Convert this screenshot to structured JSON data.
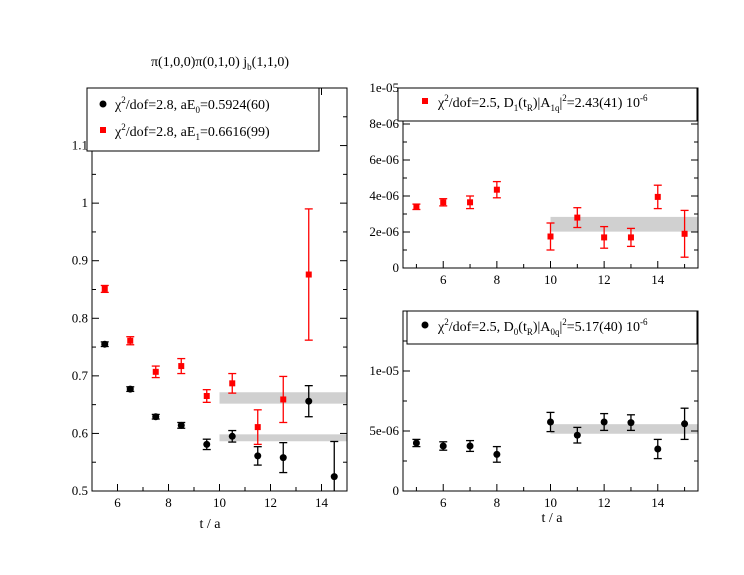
{
  "chart_data": [
    {
      "type": "scatter",
      "title_main": "π(1,0,0)π(0,1,0)  j",
      "title_sub": "b",
      "title_tail": "(1,1,0)",
      "xlabel": "t / a",
      "xlim": [
        5,
        15
      ],
      "ylim": [
        0.5,
        1.2
      ],
      "xticks": [
        6,
        8,
        10,
        12,
        14
      ],
      "yticks": [
        0.5,
        0.6,
        0.7,
        0.8,
        0.9,
        1,
        1.1
      ],
      "ytick_labels": [
        "0.5",
        "0.6",
        "0.7",
        "0.8",
        "0.9",
        "1",
        "1.1"
      ],
      "series": [
        {
          "name": "ground",
          "color": "#000000",
          "marker": "circle",
          "legend": {
            "pre": "χ",
            "sup": "2",
            "mid": "/dof=2.8,  aE",
            "sub": "0",
            "post": "=0.5924(60)"
          },
          "points": [
            {
              "x": 5.5,
              "y": 0.755,
              "err": 0.004
            },
            {
              "x": 6.5,
              "y": 0.677,
              "err": 0.004
            },
            {
              "x": 7.5,
              "y": 0.629,
              "err": 0.004
            },
            {
              "x": 8.5,
              "y": 0.614,
              "err": 0.005
            },
            {
              "x": 9.5,
              "y": 0.581,
              "err": 0.009
            },
            {
              "x": 10.5,
              "y": 0.595,
              "err": 0.01
            },
            {
              "x": 11.5,
              "y": 0.561,
              "err": 0.016
            },
            {
              "x": 12.5,
              "y": 0.558,
              "err": 0.026
            },
            {
              "x": 13.5,
              "y": 0.656,
              "err": 0.027
            },
            {
              "x": 14.5,
              "y": 0.525,
              "err": 0.061
            }
          ],
          "band": {
            "x0": 10,
            "x1": 15,
            "y": 0.5924,
            "err": 0.006
          }
        },
        {
          "name": "excited",
          "color": "#ff0000",
          "marker": "square",
          "legend": {
            "pre": "χ",
            "sup": "2",
            "mid": "/dof=2.8,  aE",
            "sub": "1",
            "post": "=0.6616(99)"
          },
          "points": [
            {
              "x": 5.5,
              "y": 0.851,
              "err": 0.006
            },
            {
              "x": 6.5,
              "y": 0.761,
              "err": 0.007
            },
            {
              "x": 7.5,
              "y": 0.707,
              "err": 0.01
            },
            {
              "x": 8.5,
              "y": 0.717,
              "err": 0.013
            },
            {
              "x": 9.5,
              "y": 0.665,
              "err": 0.011
            },
            {
              "x": 10.5,
              "y": 0.687,
              "err": 0.017
            },
            {
              "x": 11.5,
              "y": 0.611,
              "err": 0.03
            },
            {
              "x": 12.5,
              "y": 0.659,
              "err": 0.04
            },
            {
              "x": 13.5,
              "y": 0.876,
              "err": 0.114
            }
          ],
          "band": {
            "x0": 10,
            "x1": 15,
            "y": 0.6616,
            "err": 0.0099
          }
        }
      ]
    },
    {
      "type": "scatter",
      "xlabel": "",
      "xlim": [
        4.5,
        15.5
      ],
      "ylim": [
        0,
        1e-05
      ],
      "xticks": [
        6,
        8,
        10,
        12,
        14
      ],
      "yticks": [
        0,
        2e-06,
        4e-06,
        6e-06,
        8e-06,
        1e-05
      ],
      "ytick_labels": [
        "0",
        "2e-06",
        "4e-06",
        "6e-06",
        "8e-06",
        "1e-05"
      ],
      "series": [
        {
          "name": "D1",
          "color": "#ff0000",
          "marker": "square",
          "legend": {
            "pre": "χ",
            "sup": "2",
            "mid": "/dof=2.5, D",
            "sub": "1",
            "post1": "(t",
            "sub2": "R",
            "post2": ")|A",
            "sub3": "1q",
            "post3": "|",
            "sup2": "2",
            "post4": "=2.43(41) 10",
            "sup3": "-6"
          },
          "points": [
            {
              "x": 5,
              "y": 3.4e-06,
              "err": 1.5e-07
            },
            {
              "x": 6,
              "y": 3.65e-06,
              "err": 2e-07
            },
            {
              "x": 7,
              "y": 3.65e-06,
              "err": 3.5e-07
            },
            {
              "x": 8,
              "y": 4.35e-06,
              "err": 4.5e-07
            },
            {
              "x": 10,
              "y": 1.75e-06,
              "err": 7.5e-07
            },
            {
              "x": 11,
              "y": 2.8e-06,
              "err": 5.5e-07
            },
            {
              "x": 12,
              "y": 1.7e-06,
              "err": 6e-07
            },
            {
              "x": 13,
              "y": 1.7e-06,
              "err": 5e-07
            },
            {
              "x": 14,
              "y": 3.95e-06,
              "err": 6.5e-07
            },
            {
              "x": 15,
              "y": 1.9e-06,
              "err": 1.3e-06
            }
          ],
          "band": {
            "x0": 10,
            "x1": 15.5,
            "y": 2.43e-06,
            "err": 4.1e-07
          }
        }
      ]
    },
    {
      "type": "scatter",
      "xlabel": "t / a",
      "xlim": [
        4.5,
        15.5
      ],
      "ylim": [
        0,
        1.5e-05
      ],
      "xticks": [
        6,
        8,
        10,
        12,
        14
      ],
      "yticks": [
        0,
        5e-06,
        1e-05
      ],
      "ytick_labels": [
        "0",
        "5e-06",
        "1e-05"
      ],
      "series": [
        {
          "name": "D0",
          "color": "#000000",
          "marker": "circle",
          "legend": {
            "pre": "χ",
            "sup": "2",
            "mid": "/dof=2.5, D",
            "sub": "0",
            "post1": "(t",
            "sub2": "R",
            "post2": ")|A",
            "sub3": "0q",
            "post3": "|",
            "sup2": "2",
            "post4": "=5.17(40) 10",
            "sup3": "-6"
          },
          "points": [
            {
              "x": 5,
              "y": 4e-06,
              "err": 3e-07
            },
            {
              "x": 6,
              "y": 3.75e-06,
              "err": 3.5e-07
            },
            {
              "x": 7,
              "y": 3.75e-06,
              "err": 4.5e-07
            },
            {
              "x": 8,
              "y": 3.05e-06,
              "err": 6.5e-07
            },
            {
              "x": 10,
              "y": 5.75e-06,
              "err": 8e-07
            },
            {
              "x": 11,
              "y": 4.65e-06,
              "err": 6.5e-07
            },
            {
              "x": 12,
              "y": 5.75e-06,
              "err": 7e-07
            },
            {
              "x": 13,
              "y": 5.7e-06,
              "err": 6.5e-07
            },
            {
              "x": 14,
              "y": 3.5e-06,
              "err": 8e-07
            },
            {
              "x": 15,
              "y": 5.6e-06,
              "err": 1.3e-06
            }
          ],
          "band": {
            "x0": 10,
            "x1": 15.5,
            "y": 5.17e-06,
            "err": 4e-07
          }
        }
      ]
    }
  ]
}
